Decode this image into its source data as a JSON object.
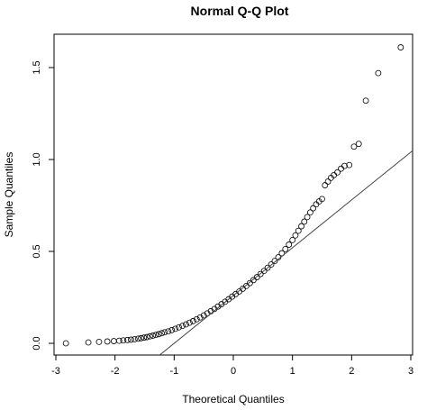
{
  "chart_data": {
    "type": "scatter",
    "title": "Normal Q-Q Plot",
    "xlabel": "Theoretical Quantiles",
    "ylabel": "Sample Quantiles",
    "xlim": [
      -3,
      3
    ],
    "ylim": [
      -0.05,
      1.65
    ],
    "x_ticks": [
      -3,
      -2,
      -1,
      0,
      1,
      2,
      3
    ],
    "y_ticks": [
      0.0,
      0.5,
      1.0,
      1.5
    ],
    "x_tick_labels": [
      "-3",
      "-2",
      "-1",
      "0",
      "1",
      "2",
      "3"
    ],
    "y_tick_labels": [
      "0.0",
      "0.5",
      "1.0",
      "1.5"
    ],
    "grid": false,
    "reference_line": {
      "intercept": 0.26,
      "slope": 0.26
    },
    "points": {
      "x": [
        -2.83,
        -2.45,
        -2.27,
        -2.13,
        -2.02,
        -1.93,
        -1.86,
        -1.79,
        -1.73,
        -1.67,
        -1.61,
        -1.56,
        -1.51,
        -1.46,
        -1.41,
        -1.36,
        -1.31,
        -1.26,
        -1.21,
        -1.16,
        -1.1,
        -1.04,
        -0.98,
        -0.92,
        -0.86,
        -0.8,
        -0.74,
        -0.68,
        -0.62,
        -0.56,
        -0.5,
        -0.44,
        -0.38,
        -0.32,
        -0.26,
        -0.2,
        -0.14,
        -0.08,
        -0.02,
        0.04,
        0.1,
        0.16,
        0.22,
        0.28,
        0.34,
        0.4,
        0.46,
        0.52,
        0.58,
        0.64,
        0.7,
        0.76,
        0.82,
        0.88,
        0.94,
        1.0,
        1.05,
        1.1,
        1.15,
        1.2,
        1.25,
        1.3,
        1.35,
        1.4,
        1.45,
        1.5,
        1.55,
        1.6,
        1.65,
        1.7,
        1.76,
        1.82,
        1.88,
        1.96,
        2.04,
        2.12,
        2.24,
        2.45,
        2.83
      ],
      "y": [
        0.0,
        0.005,
        0.008,
        0.01,
        0.012,
        0.014,
        0.016,
        0.018,
        0.02,
        0.022,
        0.025,
        0.028,
        0.031,
        0.034,
        0.038,
        0.042,
        0.046,
        0.05,
        0.055,
        0.06,
        0.065,
        0.072,
        0.079,
        0.087,
        0.095,
        0.103,
        0.112,
        0.121,
        0.131,
        0.141,
        0.152,
        0.163,
        0.175,
        0.187,
        0.2,
        0.213,
        0.226,
        0.24,
        0.254,
        0.268,
        0.282,
        0.297,
        0.312,
        0.328,
        0.344,
        0.36,
        0.377,
        0.394,
        0.411,
        0.429,
        0.448,
        0.468,
        0.49,
        0.513,
        0.537,
        0.562,
        0.587,
        0.612,
        0.637,
        0.662,
        0.687,
        0.712,
        0.735,
        0.756,
        0.772,
        0.785,
        0.86,
        0.88,
        0.9,
        0.915,
        0.93,
        0.95,
        0.965,
        0.97,
        1.07,
        1.085,
        1.32,
        1.47,
        1.61
      ]
    }
  }
}
